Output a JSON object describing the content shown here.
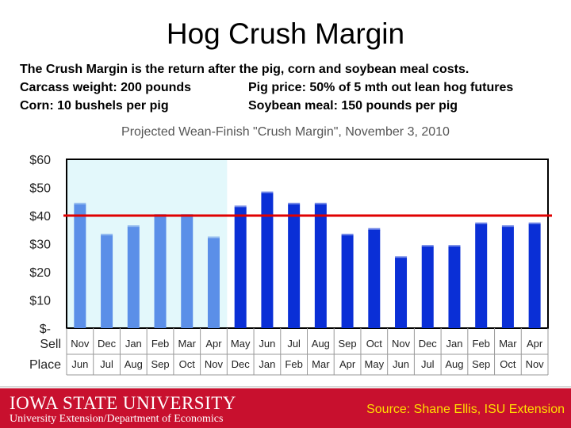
{
  "slide": {
    "title": "Hog Crush Margin",
    "description": "The Crush Margin is the return after the pig, corn and soybean meal costs.",
    "carcass": "Carcass weight:  200 pounds",
    "pig_price": "Pig price:  50% of 5 mth out lean hog futures",
    "corn": "Corn:  10 bushels per pig",
    "soymeal": "Soybean meal:  150 pounds per pig"
  },
  "footer": {
    "logo_text": "IOWA STATE UNIVERSITY",
    "subtitle": "University Extension/Department of Economics",
    "source": "Source: Shane Ellis, ISU Extension"
  },
  "colors": {
    "bar_past": "#5b8fe8",
    "bar_projected": "#0a2fd6",
    "shaded_region": "#e3f8fb",
    "reference_line": "#e00000",
    "footer_red": "#c8102e",
    "source_text": "#ffde00"
  },
  "chart_data": {
    "type": "bar",
    "title": "Projected Wean-Finish \"Crush Margin\", November 3, 2010",
    "ylim": [
      0,
      60
    ],
    "y_ticks": [
      "$-",
      "$10",
      "$20",
      "$30",
      "$40",
      "$50",
      "$60"
    ],
    "row_labels": [
      "Sell",
      "Place"
    ],
    "sell_months": [
      "Nov",
      "Dec",
      "Jan",
      "Feb",
      "Mar",
      "Apr",
      "May",
      "Jun",
      "Jul",
      "Aug",
      "Sep",
      "Oct",
      "Nov",
      "Dec",
      "Jan",
      "Feb",
      "Mar",
      "Apr"
    ],
    "place_months": [
      "Jun",
      "Jul",
      "Aug",
      "Sep",
      "Oct",
      "Nov",
      "Dec",
      "Jan",
      "Feb",
      "Mar",
      "Apr",
      "May",
      "Jun",
      "Jul",
      "Aug",
      "Sep",
      "Oct",
      "Nov"
    ],
    "values": [
      44,
      33,
      36,
      40,
      40,
      32,
      43,
      48,
      44,
      44,
      33,
      35,
      25,
      29,
      29,
      37,
      36,
      37
    ],
    "shaded_count": 6,
    "reference_value": 40,
    "grid": false
  }
}
